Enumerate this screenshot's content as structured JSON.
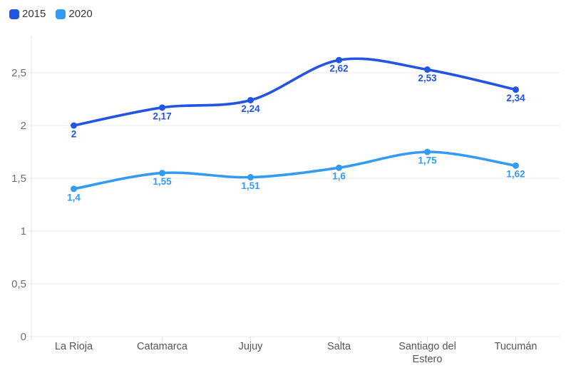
{
  "chart_data": {
    "type": "line",
    "title": "",
    "categories": [
      "La Rioja",
      "Catamarca",
      "Jujuy",
      "Salta",
      "Santiago del Estero",
      "Tucumán"
    ],
    "series": [
      {
        "name": "2015",
        "color": "#2255e3",
        "values": [
          2,
          2.17,
          2.24,
          2.62,
          2.53,
          2.34
        ],
        "point_labels": [
          "2",
          "2,17",
          "2,24",
          "2,62",
          "2,53",
          "2,34"
        ]
      },
      {
        "name": "2020",
        "color": "#339cf2",
        "values": [
          1.4,
          1.55,
          1.51,
          1.6,
          1.75,
          1.62
        ],
        "point_labels": [
          "1,4",
          "1,55",
          "1,51",
          "1,6",
          "1,75",
          "1,62"
        ]
      }
    ],
    "y_axis": {
      "min": 0,
      "max": 2.85,
      "ticks": [
        {
          "value": 0,
          "label": "0"
        },
        {
          "value": 0.5,
          "label": "0,5"
        },
        {
          "value": 1,
          "label": "1"
        },
        {
          "value": 1.5,
          "label": "1,5"
        },
        {
          "value": 2,
          "label": "2"
        },
        {
          "value": 2.5,
          "label": "2,5"
        }
      ]
    },
    "xlabel": "",
    "ylabel": "",
    "grid": true,
    "curve": "smooth",
    "legend_position": "top-left",
    "decimal_separator": ","
  },
  "legend": {
    "items": [
      {
        "label": "2015",
        "color": "#2255e3"
      },
      {
        "label": "2020",
        "color": "#339cf2"
      }
    ]
  },
  "styles": {
    "background": "#ffffff",
    "grid_color": "#ececec",
    "axis_line_color": "#e6e6e6",
    "tick_color": "#e2e2e2",
    "y_label_color": "#6f6f6f",
    "x_label_color": "#565656",
    "legend_text_color": "#383838"
  }
}
